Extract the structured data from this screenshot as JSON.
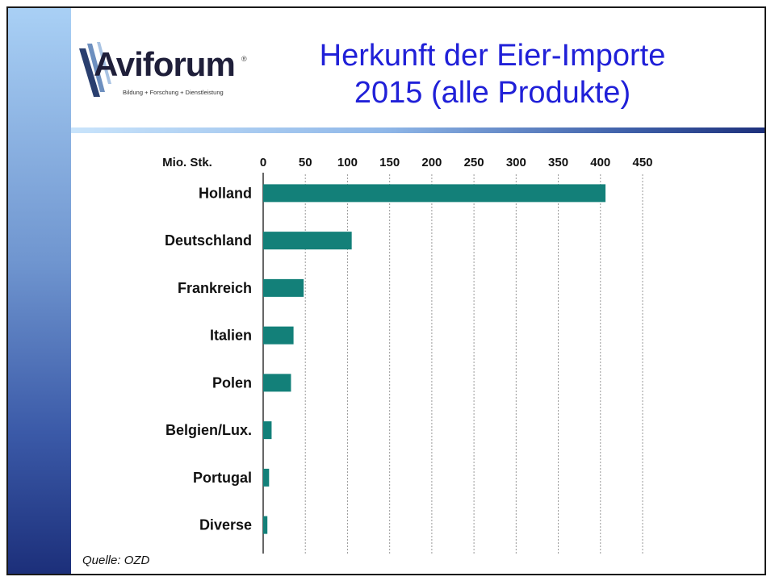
{
  "slide": {
    "title_line1": "Herkunft der Eier-Importe",
    "title_line2": "2015 (alle Produkte)",
    "logo_text": "Aviforum",
    "logo_tagline": "Bildung + Forschung + Dienstleistung",
    "logo_mark": "®",
    "source": "Quelle: OZD",
    "accent_title_color": "#2020d8",
    "bar_color": "#138079"
  },
  "chart_data": {
    "type": "bar",
    "orientation": "horizontal",
    "unit_label": "Mio. Stk.",
    "categories": [
      "Holland",
      "Deutschland",
      "Frankreich",
      "Italien",
      "Polen",
      "Belgien/Lux.",
      "Portugal",
      "Diverse"
    ],
    "values": [
      406,
      105,
      48,
      36,
      33,
      10,
      7,
      5
    ],
    "xlim": [
      0,
      450
    ],
    "ticks": [
      "0",
      "50",
      "100",
      "150",
      "200",
      "250",
      "300",
      "350",
      "400",
      "450"
    ],
    "grid": true,
    "axis_position": "top"
  }
}
